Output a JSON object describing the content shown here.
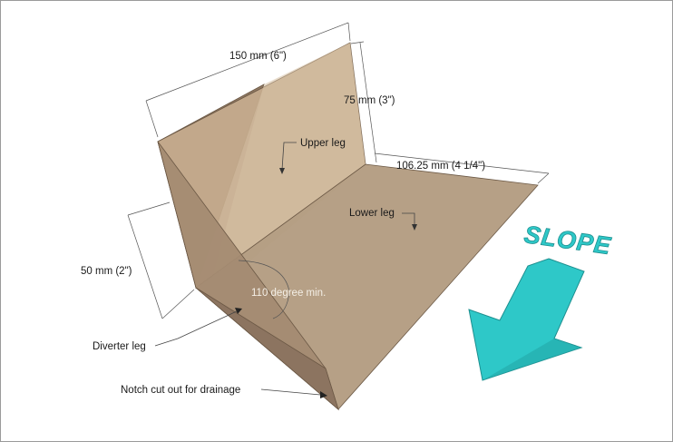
{
  "labels": {
    "dim_width": "150 mm (6\")",
    "dim_upper_height": "75 mm (3\")",
    "dim_lower_depth": "106.25 mm (4 1/4\")",
    "dim_diverter_height": "50 mm (2\")",
    "upper_leg": "Upper leg",
    "lower_leg": "Lower leg",
    "diverter_leg": "Diverter leg",
    "angle": "110 degree min.",
    "notch": "Notch cut out for drainage",
    "slope": "SLOPE"
  },
  "colors": {
    "upper_leg_fill": "#c7ad8e",
    "lower_leg_fill": "#b29b7f",
    "diverter_fill": "#9d846b",
    "arrow_fill": "#2ec8c8",
    "arrow_stroke": "#1d8f8f"
  }
}
